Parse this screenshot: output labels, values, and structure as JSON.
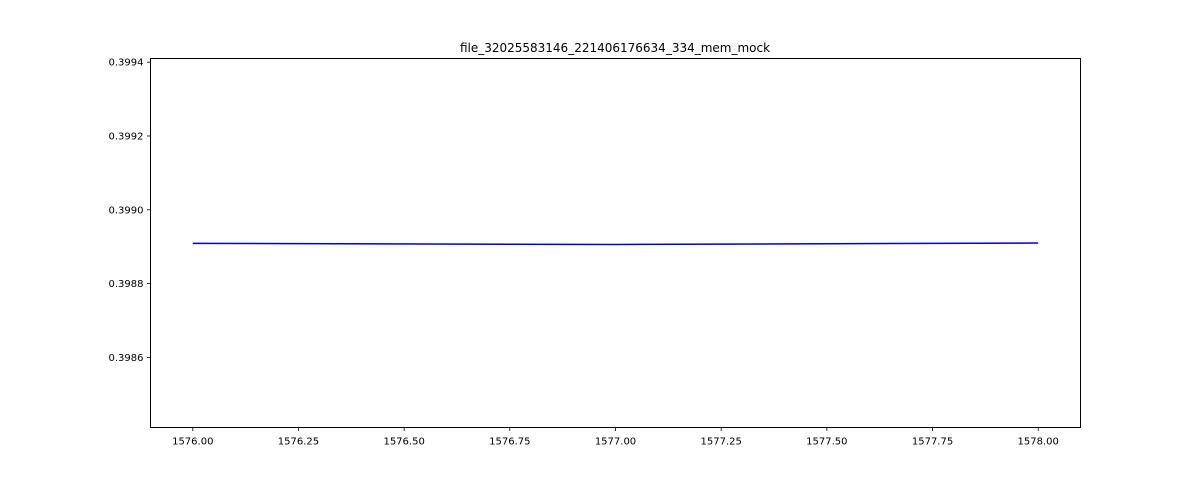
{
  "chart_data": {
    "type": "line",
    "title": "file_32025583146_221406176634_334_mem_mock",
    "xlabel": "",
    "ylabel": "",
    "xlim": [
      1575.9,
      1578.1
    ],
    "ylim": [
      0.39841,
      0.39941
    ],
    "x_ticks": [
      1576.0,
      1576.25,
      1576.5,
      1576.75,
      1577.0,
      1577.25,
      1577.5,
      1577.75,
      1578.0
    ],
    "x_tick_labels": [
      "1576.00",
      "1576.25",
      "1576.50",
      "1576.75",
      "1577.00",
      "1577.25",
      "1577.50",
      "1577.75",
      "1578.00"
    ],
    "y_ticks": [
      0.3986,
      0.3988,
      0.399,
      0.3992,
      0.3994
    ],
    "y_tick_labels": [
      "0.3986",
      "0.3988",
      "0.3990",
      "0.3992",
      "0.3994"
    ],
    "grid": false,
    "series": [
      {
        "color": "#0000cc",
        "x": [
          1576.0,
          1577.0,
          1578.0
        ],
        "y": [
          0.398909,
          0.398906,
          0.39891
        ]
      }
    ]
  }
}
